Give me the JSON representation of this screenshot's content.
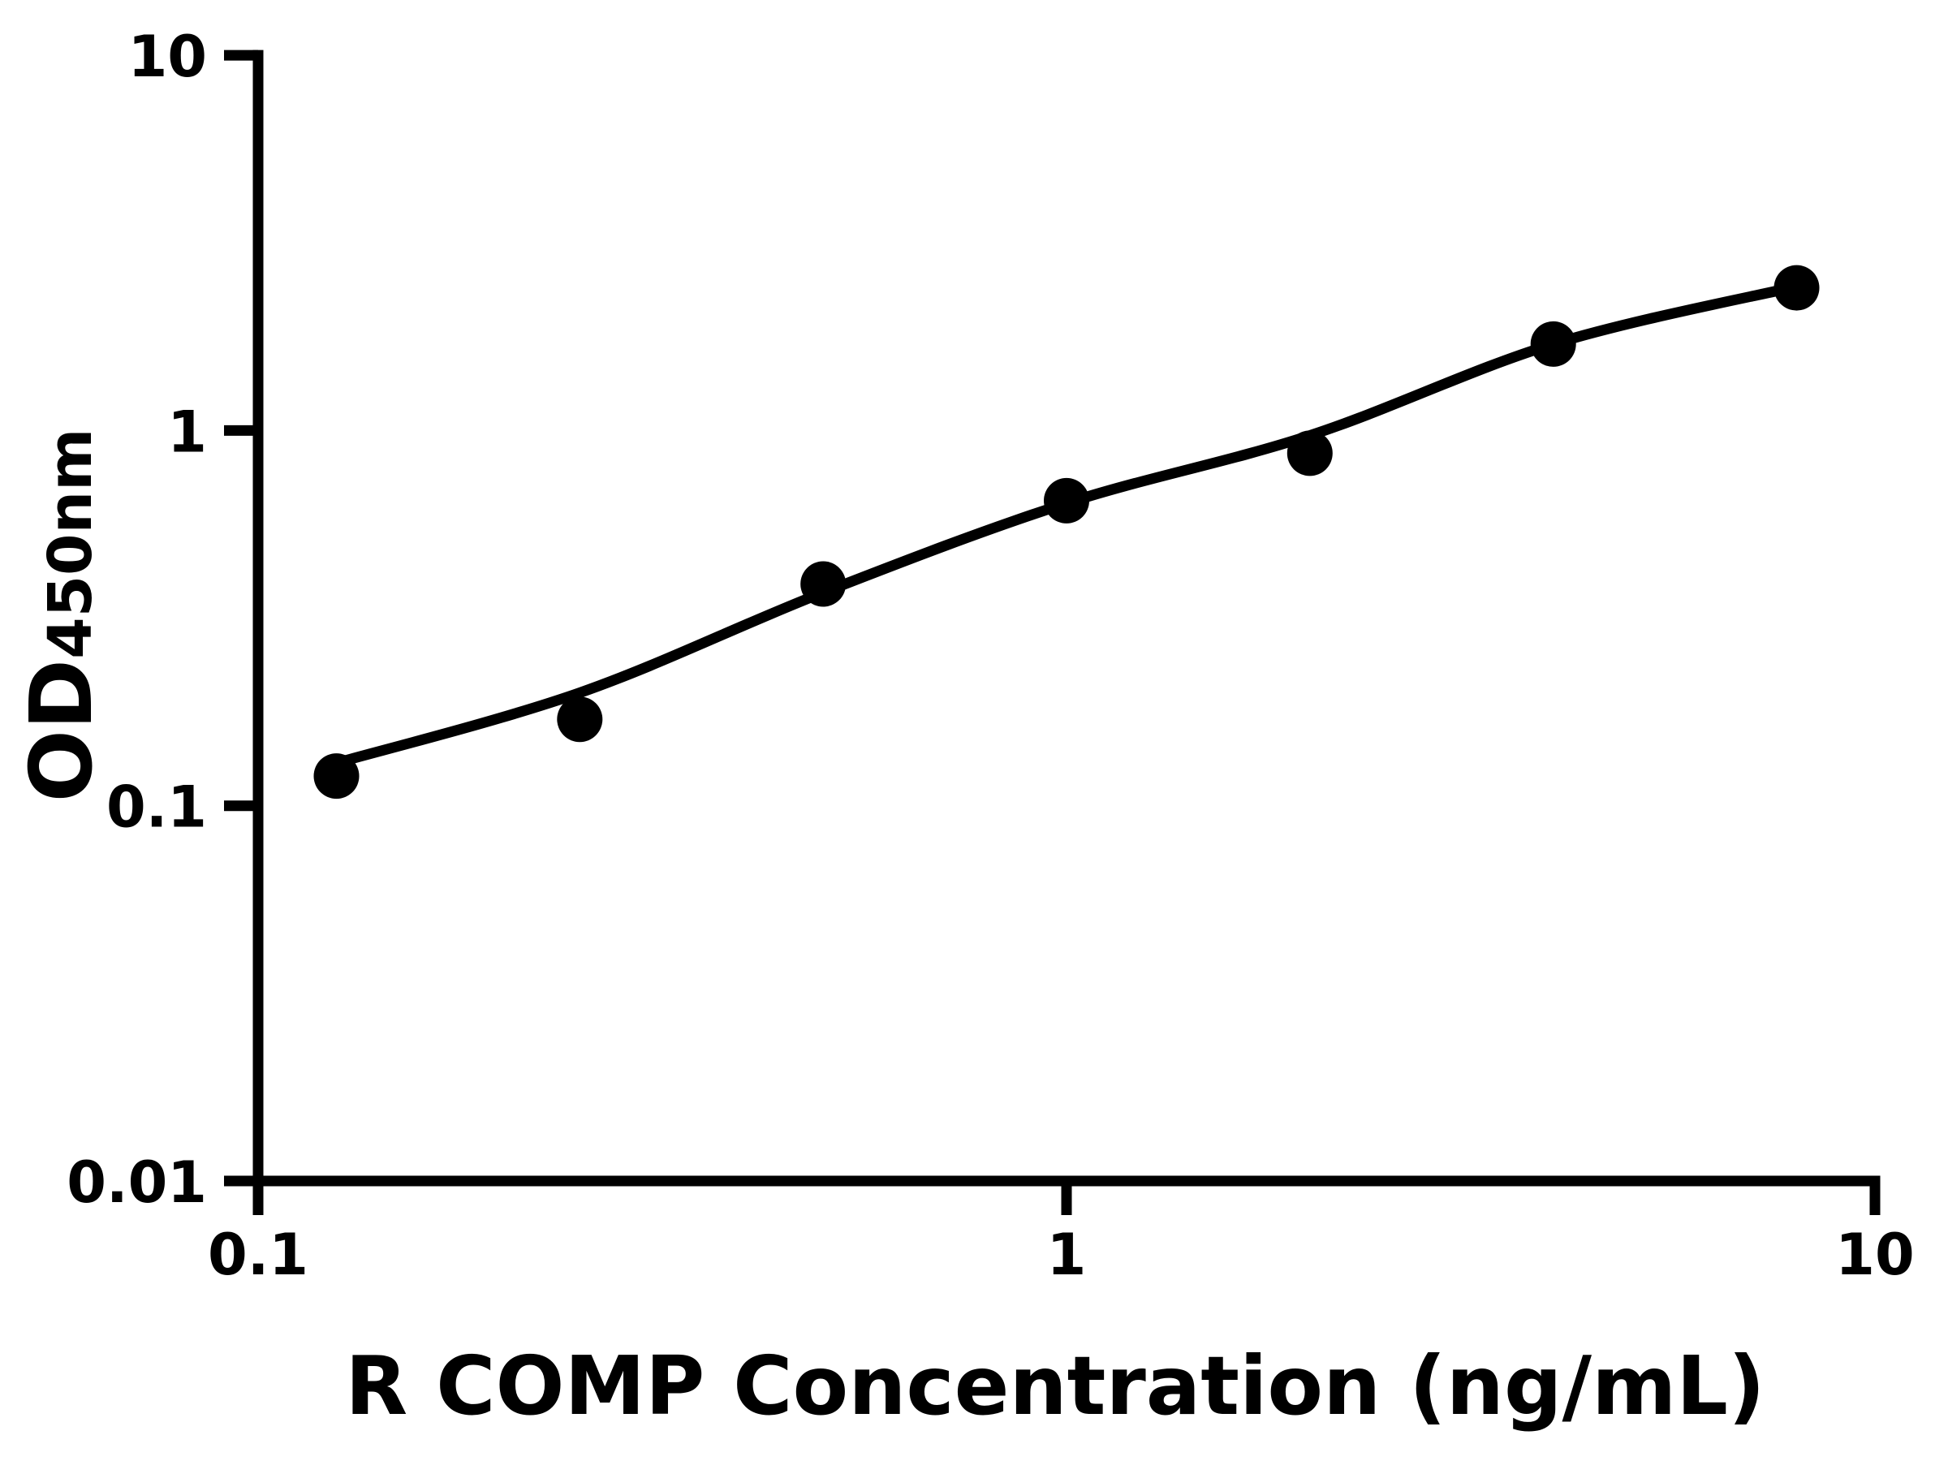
{
  "figure": {
    "background_color": "#ffffff",
    "foreground_color": "#000000"
  },
  "chart_data": {
    "type": "scatter",
    "title": "",
    "xlabel": "R COMP Concentration (ng/mL)",
    "ylabel": "OD450nm",
    "ylabel_main": "OD",
    "ylabel_sub": "450nm",
    "x_scale": "log",
    "y_scale": "log",
    "xlim": [
      0.1,
      10
    ],
    "ylim": [
      0.01,
      10
    ],
    "grid": false,
    "legend": null,
    "x_ticks": [
      {
        "value": 0.1,
        "label": "0.1"
      },
      {
        "value": 1,
        "label": "1"
      },
      {
        "value": 10,
        "label": "10"
      }
    ],
    "y_ticks": [
      {
        "value": 10,
        "label": "10"
      },
      {
        "value": 1,
        "label": "1"
      },
      {
        "value": 0.1,
        "label": "0.1"
      },
      {
        "value": 0.01,
        "label": "0.01"
      }
    ],
    "series": [
      {
        "marker": "filled-circle",
        "color": "#000000",
        "points": [
          {
            "x": 0.125,
            "y": 0.12
          },
          {
            "x": 0.25,
            "y": 0.17
          },
          {
            "x": 0.5,
            "y": 0.39
          },
          {
            "x": 1,
            "y": 0.65
          },
          {
            "x": 2,
            "y": 0.87
          },
          {
            "x": 4,
            "y": 1.7
          },
          {
            "x": 8,
            "y": 2.4
          }
        ]
      }
    ],
    "fit_curve": {
      "color": "#000000",
      "points": [
        {
          "x": 0.125,
          "y": 0.13
        },
        {
          "x": 0.25,
          "y": 0.2
        },
        {
          "x": 0.5,
          "y": 0.37
        },
        {
          "x": 1,
          "y": 0.64
        },
        {
          "x": 2,
          "y": 0.97
        },
        {
          "x": 4,
          "y": 1.7
        },
        {
          "x": 8,
          "y": 2.42
        }
      ]
    }
  }
}
